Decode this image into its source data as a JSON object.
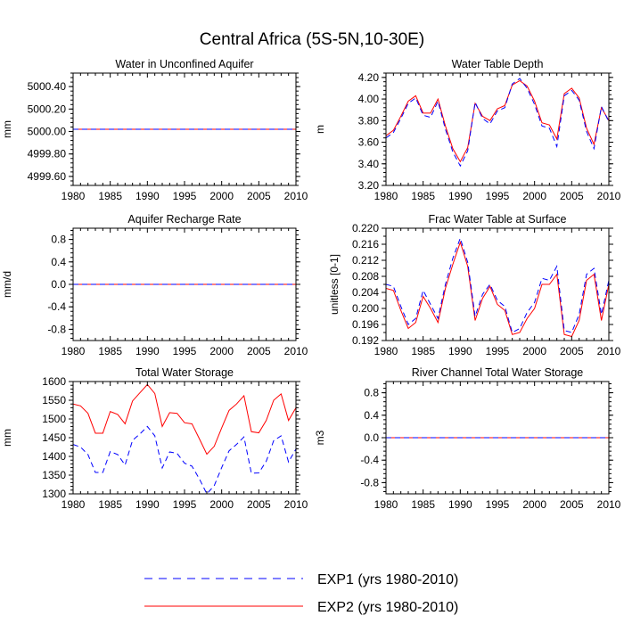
{
  "figure": {
    "title": "Central Africa (5S-5N,10-30E)"
  },
  "legend": [
    {
      "label": "EXP1 (yrs 1980-2010)",
      "color": "#0000ff",
      "dash": true
    },
    {
      "label": "EXP2 (yrs 1980-2010)",
      "color": "#ff0000",
      "dash": false
    }
  ],
  "chart_data": [
    {
      "type": "line",
      "title": "Water in Unconfined Aquifer",
      "xlabel": "",
      "ylabel": "mm",
      "xlim": [
        1980,
        2010
      ],
      "ylim": [
        4999.52,
        5000.52
      ],
      "xticks": [
        1980,
        1985,
        1990,
        1995,
        2000,
        2005,
        2010
      ],
      "yticks": [
        4999.6,
        4999.8,
        5000.0,
        5000.2,
        5000.4
      ],
      "ytick_labels": [
        "4999.60",
        "4999.80",
        "5000.00",
        "5000.20",
        "5000.40"
      ],
      "minor_y": 4,
      "x": [
        1980,
        2010
      ],
      "series": [
        {
          "name": "EXP2 (yrs 1980-2010)",
          "color": "#ff0000",
          "dash": false,
          "values": [
            5000.02,
            5000.02
          ]
        },
        {
          "name": "EXP1 (yrs 1980-2010)",
          "color": "#0000ff",
          "dash": true,
          "values": [
            5000.02,
            5000.02
          ]
        }
      ]
    },
    {
      "type": "line",
      "title": "Water Table Depth",
      "xlabel": "",
      "ylabel": "m",
      "xlim": [
        1980,
        2010
      ],
      "ylim": [
        3.2,
        4.24
      ],
      "xticks": [
        1980,
        1985,
        1990,
        1995,
        2000,
        2005,
        2010
      ],
      "yticks": [
        3.2,
        3.4,
        3.6,
        3.8,
        4.0,
        4.2
      ],
      "ytick_labels": [
        "3.20",
        "3.40",
        "3.60",
        "3.80",
        "4.00",
        "4.20"
      ],
      "minor_y": 4,
      "x": [
        1980,
        1981,
        1982,
        1983,
        1984,
        1985,
        1986,
        1987,
        1988,
        1989,
        1990,
        1991,
        1992,
        1993,
        1994,
        1995,
        1996,
        1997,
        1998,
        1999,
        2000,
        2001,
        2002,
        2003,
        2004,
        2005,
        2006,
        2007,
        2008,
        2009,
        2010
      ],
      "series": [
        {
          "name": "EXP2 (yrs 1980-2010)",
          "color": "#ff0000",
          "dash": false,
          "values": [
            3.66,
            3.71,
            3.84,
            3.98,
            4.03,
            3.87,
            3.87,
            4.0,
            3.75,
            3.54,
            3.42,
            3.55,
            3.96,
            3.84,
            3.8,
            3.91,
            3.94,
            4.13,
            4.17,
            4.12,
            3.98,
            3.78,
            3.76,
            3.63,
            4.05,
            4.1,
            4.01,
            3.73,
            3.58,
            3.92,
            3.8
          ]
        },
        {
          "name": "EXP1 (yrs 1980-2010)",
          "color": "#0000ff",
          "dash": true,
          "values": [
            3.64,
            3.69,
            3.82,
            3.96,
            4.01,
            3.85,
            3.83,
            3.98,
            3.72,
            3.51,
            3.38,
            3.52,
            3.97,
            3.82,
            3.77,
            3.89,
            3.92,
            4.14,
            4.19,
            4.1,
            3.95,
            3.75,
            3.73,
            3.56,
            4.03,
            4.08,
            3.99,
            3.7,
            3.54,
            3.93,
            3.79
          ]
        }
      ]
    },
    {
      "type": "line",
      "title": "Aquifer Recharge Rate",
      "xlabel": "",
      "ylabel": "mm/d",
      "xlim": [
        1980,
        2010
      ],
      "ylim": [
        -1.0,
        1.0
      ],
      "xticks": [
        1980,
        1985,
        1990,
        1995,
        2000,
        2005,
        2010
      ],
      "yticks": [
        -0.8,
        -0.4,
        0.0,
        0.4,
        0.8
      ],
      "ytick_labels": [
        "-0.8",
        "-0.4",
        "0.0",
        "0.4",
        "0.8"
      ],
      "minor_y": 4,
      "x": [
        1980,
        2010
      ],
      "series": [
        {
          "name": "EXP2 (yrs 1980-2010)",
          "color": "#ff0000",
          "dash": false,
          "values": [
            0.0,
            0.0
          ]
        },
        {
          "name": "EXP1 (yrs 1980-2010)",
          "color": "#0000ff",
          "dash": true,
          "values": [
            0.0,
            0.0
          ]
        }
      ]
    },
    {
      "type": "line",
      "title": "Frac Water Table at Surface",
      "xlabel": "",
      "ylabel": "unitless [0-1]",
      "xlim": [
        1980,
        2010
      ],
      "ylim": [
        0.192,
        0.22
      ],
      "xticks": [
        1980,
        1985,
        1990,
        1995,
        2000,
        2005,
        2010
      ],
      "yticks": [
        0.192,
        0.196,
        0.2,
        0.204,
        0.208,
        0.212,
        0.216,
        0.22
      ],
      "ytick_labels": [
        "0.192",
        "0.196",
        "0.200",
        "0.204",
        "0.208",
        "0.212",
        "0.216",
        "0.220"
      ],
      "minor_y": 1,
      "x": [
        1980,
        1981,
        1982,
        1983,
        1984,
        1985,
        1986,
        1987,
        1988,
        1989,
        1990,
        1991,
        1992,
        1993,
        1994,
        1995,
        1996,
        1997,
        1998,
        1999,
        2000,
        2001,
        2002,
        2003,
        2004,
        2005,
        2006,
        2007,
        2008,
        2009,
        2010
      ],
      "series": [
        {
          "name": "EXP2 (yrs 1980-2010)",
          "color": "#ff0000",
          "dash": false,
          "values": [
            0.205,
            0.2045,
            0.1995,
            0.195,
            0.1965,
            0.203,
            0.2,
            0.1965,
            0.205,
            0.211,
            0.2165,
            0.2105,
            0.197,
            0.2025,
            0.2055,
            0.201,
            0.1995,
            0.1935,
            0.194,
            0.1975,
            0.2,
            0.206,
            0.206,
            0.2085,
            0.1935,
            0.193,
            0.197,
            0.207,
            0.2085,
            0.197,
            0.206
          ]
        },
        {
          "name": "EXP1 (yrs 1980-2010)",
          "color": "#0000ff",
          "dash": true,
          "values": [
            0.206,
            0.2055,
            0.2005,
            0.196,
            0.1975,
            0.2045,
            0.201,
            0.1975,
            0.206,
            0.2125,
            0.2175,
            0.2115,
            0.198,
            0.2035,
            0.206,
            0.202,
            0.2005,
            0.194,
            0.195,
            0.199,
            0.2015,
            0.2075,
            0.207,
            0.2105,
            0.1945,
            0.194,
            0.1985,
            0.2085,
            0.21,
            0.1985,
            0.207
          ]
        }
      ]
    },
    {
      "type": "line",
      "title": "Total Water Storage",
      "xlabel": "",
      "ylabel": "mm",
      "xlim": [
        1980,
        2010
      ],
      "ylim": [
        1300,
        1600
      ],
      "xticks": [
        1980,
        1985,
        1990,
        1995,
        2000,
        2005,
        2010
      ],
      "yticks": [
        1300,
        1350,
        1400,
        1450,
        1500,
        1550,
        1600
      ],
      "ytick_labels": [
        "1300",
        "1350",
        "1400",
        "1450",
        "1500",
        "1550",
        "1600"
      ],
      "minor_y": 4,
      "x": [
        1980,
        1981,
        1982,
        1983,
        1984,
        1985,
        1986,
        1987,
        1988,
        1989,
        1990,
        1991,
        1992,
        1993,
        1994,
        1995,
        1996,
        1997,
        1998,
        1999,
        2000,
        2001,
        2002,
        2003,
        2004,
        2005,
        2006,
        2007,
        2008,
        2009,
        2010
      ],
      "series": [
        {
          "name": "EXP2 (yrs 1980-2010)",
          "color": "#ff0000",
          "dash": false,
          "values": [
            1540,
            1535,
            1515,
            1462,
            1462,
            1520,
            1512,
            1487,
            1548,
            1570,
            1592,
            1568,
            1480,
            1517,
            1515,
            1490,
            1487,
            1447,
            1406,
            1427,
            1476,
            1523,
            1540,
            1562,
            1466,
            1463,
            1496,
            1550,
            1567,
            1496,
            1530
          ]
        },
        {
          "name": "EXP1 (yrs 1980-2010)",
          "color": "#0000ff",
          "dash": true,
          "values": [
            1432,
            1425,
            1405,
            1357,
            1357,
            1413,
            1405,
            1377,
            1443,
            1460,
            1480,
            1455,
            1369,
            1412,
            1408,
            1382,
            1374,
            1340,
            1300,
            1322,
            1370,
            1415,
            1432,
            1452,
            1355,
            1356,
            1387,
            1442,
            1455,
            1385,
            1420
          ]
        }
      ]
    },
    {
      "type": "line",
      "title": "River Channel Total Water Storage",
      "xlabel": "",
      "ylabel": "m3",
      "xlim": [
        1980,
        2010
      ],
      "ylim": [
        -1.0,
        1.0
      ],
      "xticks": [
        1980,
        1985,
        1990,
        1995,
        2000,
        2005,
        2010
      ],
      "yticks": [
        -0.8,
        -0.4,
        0.0,
        0.4,
        0.8
      ],
      "ytick_labels": [
        "-0.8",
        "-0.4",
        "0.0",
        "0.4",
        "0.8"
      ],
      "minor_y": 4,
      "x": [
        1980,
        2010
      ],
      "series": [
        {
          "name": "EXP2 (yrs 1980-2010)",
          "color": "#ff0000",
          "dash": false,
          "values": [
            0.0,
            0.0
          ]
        },
        {
          "name": "EXP1 (yrs 1980-2010)",
          "color": "#0000ff",
          "dash": true,
          "values": [
            0.0,
            0.0
          ]
        }
      ]
    }
  ]
}
